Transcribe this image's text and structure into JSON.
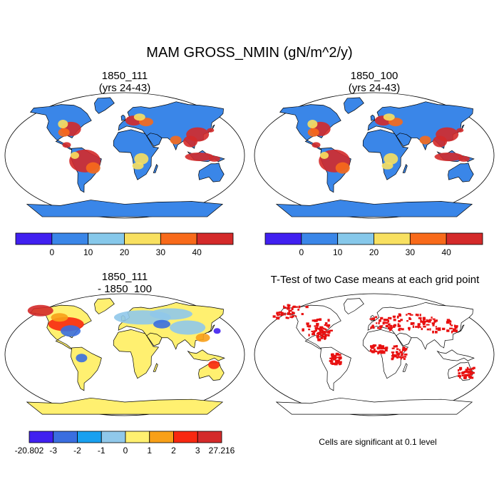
{
  "title": "MAM GROSS_NMIN (gN/m^2/y)",
  "panels": [
    {
      "id": "case1",
      "title_line1": "1850_111",
      "title_line2": "(yrs 24-43)"
    },
    {
      "id": "case2",
      "title_line1": "1850_100",
      "title_line2": "(yrs 24-43)"
    },
    {
      "id": "diff",
      "title_line1": "1850_111",
      "title_line2": "- 1850_100"
    },
    {
      "id": "ttest",
      "title_line1": "T-Test of two Case means at each grid point",
      "title_line2": ""
    }
  ],
  "colorbar_abs": {
    "colors": [
      "#4020f0",
      "#3a86e8",
      "#86c8ea",
      "#f8e060",
      "#f86a1a",
      "#d42a2a"
    ],
    "labels": [
      "0",
      "10",
      "20",
      "30",
      "40"
    ]
  },
  "colorbar_diff": {
    "colors": [
      "#4020f0",
      "#3a6ee0",
      "#18a0f0",
      "#90c8ea",
      "#fff070",
      "#f8a018",
      "#f82810",
      "#d42a2a"
    ],
    "labels": [
      "-20.802",
      "-3",
      "-2",
      "-1",
      "0",
      "1",
      "2",
      "3",
      "27.216"
    ]
  },
  "ttest_note": "Cells are significant at 0.1 level"
}
